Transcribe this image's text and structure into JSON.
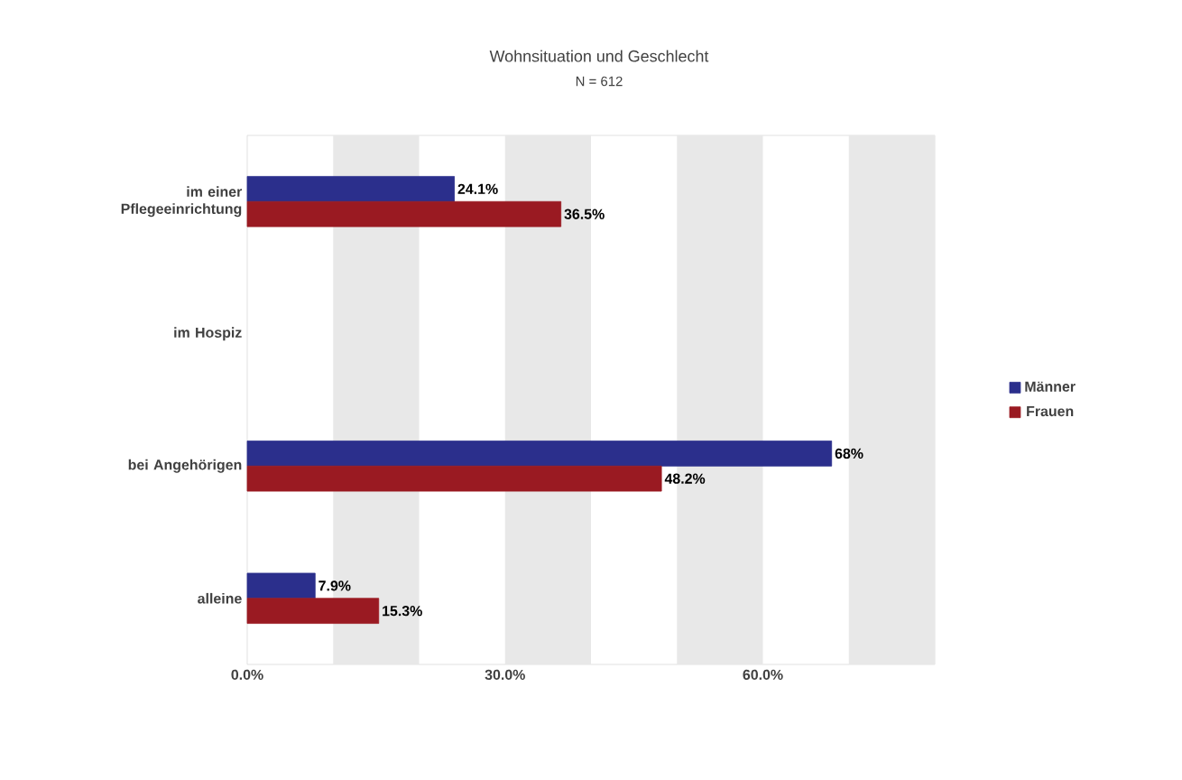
{
  "chart_data": {
    "type": "bar",
    "orientation": "horizontal",
    "title": "Wohnsituation und Geschlecht",
    "subtitle": "N = 612",
    "categories": [
      "im einer Pflegeeinrichtung",
      "im Hospiz",
      "bei Angehörigen",
      "alleine"
    ],
    "series": [
      {
        "name": "Männer",
        "color": "#2b2f8c",
        "values": [
          24.1,
          null,
          68,
          7.9
        ],
        "value_labels": [
          "24.1%",
          null,
          "68%",
          "7.9%"
        ]
      },
      {
        "name": "Frauen",
        "color": "#9a1a22",
        "values": [
          36.5,
          null,
          48.2,
          15.3
        ],
        "value_labels": [
          "36.5%",
          null,
          "48.2%",
          "15.3%"
        ]
      }
    ],
    "xlim": [
      0,
      80
    ],
    "xticks": [
      {
        "value": 0,
        "label": "0.0%"
      },
      {
        "value": 30,
        "label": "30.0%"
      },
      {
        "value": 60,
        "label": "60.0%"
      }
    ],
    "bands": [
      {
        "axis": "x",
        "from": 10,
        "to": 20,
        "color": "#e8e8e8"
      },
      {
        "axis": "x",
        "from": 30,
        "to": 40,
        "color": "#e8e8e8"
      },
      {
        "axis": "x",
        "from": 50,
        "to": 60,
        "color": "#e8e8e8"
      },
      {
        "axis": "x",
        "from": 70,
        "to": 80,
        "color": "#e8e8e8"
      }
    ],
    "legend": "right"
  }
}
